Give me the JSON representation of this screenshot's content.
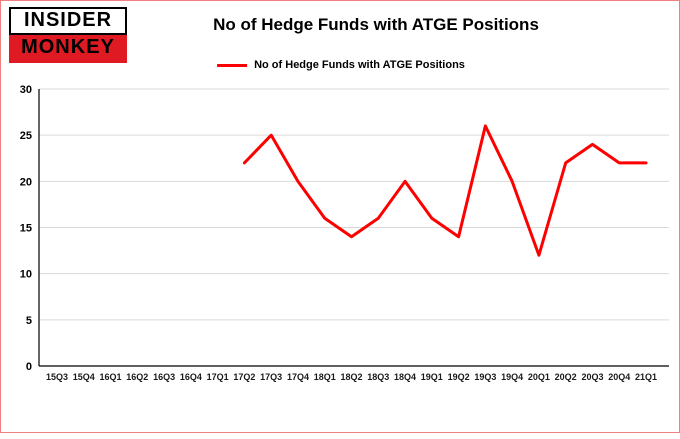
{
  "logo": {
    "line1": "INSIDER",
    "line2": "MONKEY"
  },
  "header": {
    "title": "No of Hedge Funds with ATGE Positions"
  },
  "legend": {
    "label": "No of Hedge Funds with ATGE Positions",
    "color": "#fe0000"
  },
  "chart_data": {
    "type": "line",
    "title": "No of Hedge Funds with ATGE Positions",
    "categories": [
      "15Q3",
      "15Q4",
      "16Q1",
      "16Q2",
      "16Q3",
      "16Q4",
      "17Q1",
      "17Q2",
      "17Q3",
      "17Q4",
      "18Q1",
      "18Q2",
      "18Q3",
      "18Q4",
      "19Q1",
      "19Q2",
      "19Q3",
      "19Q4",
      "20Q1",
      "20Q2",
      "20Q3",
      "20Q4",
      "21Q1"
    ],
    "series": [
      {
        "name": "No of Hedge Funds with ATGE Positions",
        "color": "#fe0000",
        "values": [
          null,
          null,
          null,
          null,
          null,
          null,
          null,
          22,
          25,
          20,
          16,
          14,
          16,
          20,
          16,
          14,
          26,
          20,
          12,
          22,
          24,
          22,
          22
        ]
      }
    ],
    "xlabel": "",
    "ylabel": "",
    "ylim": [
      0,
      30
    ],
    "yticks": [
      0,
      5,
      10,
      15,
      20,
      25,
      30
    ],
    "grid": true,
    "legend_position": "top",
    "grid_color": "#d9d9d9",
    "axis_color": "#000000"
  }
}
